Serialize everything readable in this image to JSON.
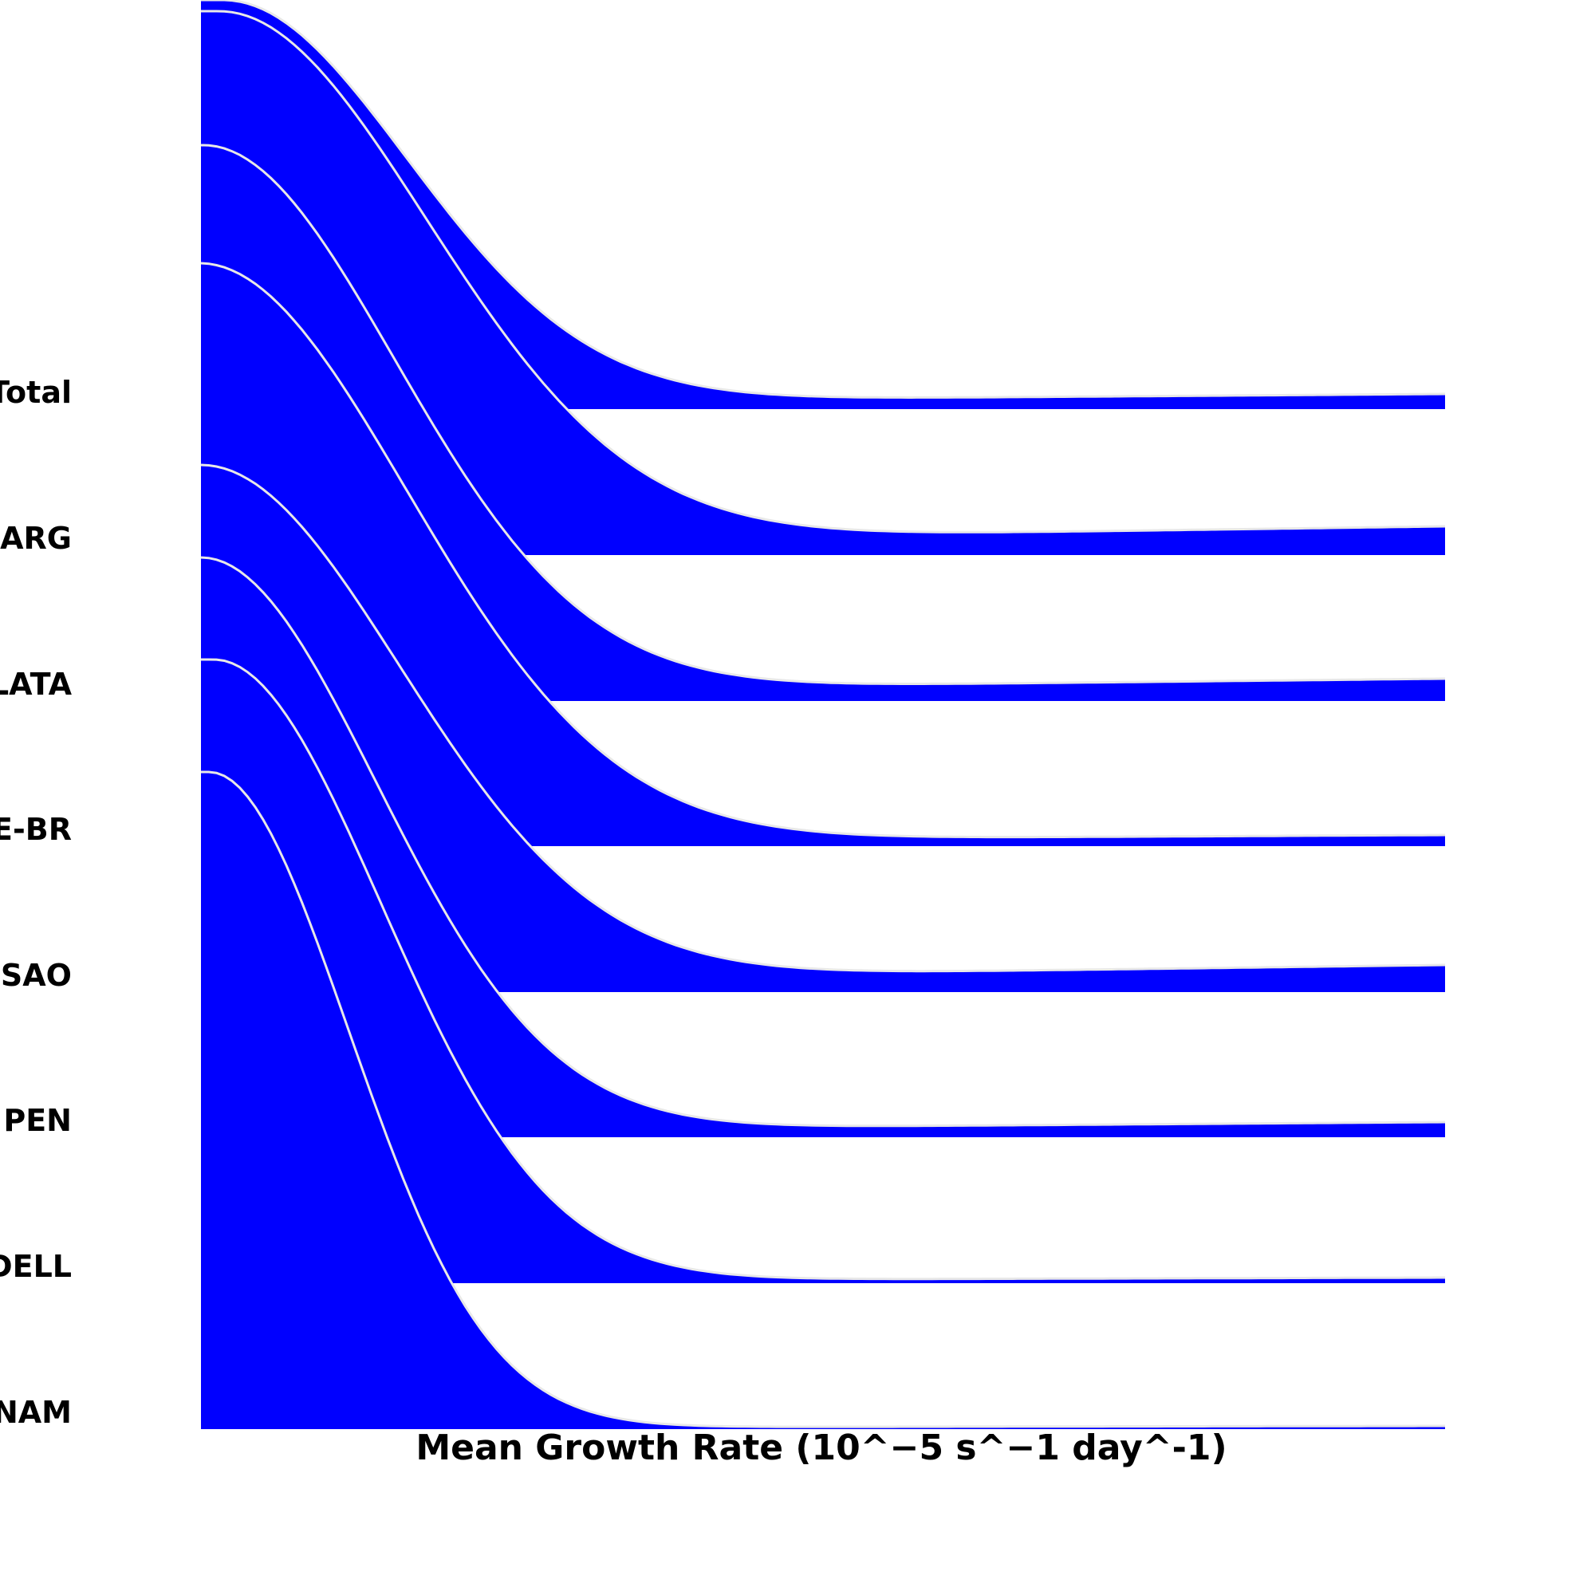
{
  "chart_data": {
    "type": "area",
    "title": "",
    "xlabel": "Mean Growth Rate (10^−5 s^−1 day^-1)",
    "ylabel": "",
    "series_color": "#0000ff",
    "outline_color": "#e8e8e8",
    "background_color": "#ffffff",
    "grid": false,
    "series": [
      {
        "name": "Total",
        "tick_label": "Total"
      },
      {
        "name": "ARG",
        "tick_label": "ARG"
      },
      {
        "name": "LATA",
        "tick_label": "LATA"
      },
      {
        "name": "E-BR",
        "tick_label": "E-BR"
      },
      {
        "name": "SAO",
        "tick_label": "SAO"
      },
      {
        "name": "PEN",
        "tick_label": "PEN"
      },
      {
        "name": "DELL",
        "tick_label": "DELL"
      },
      {
        "name": "NAM",
        "tick_label": "NAM"
      }
    ]
  }
}
